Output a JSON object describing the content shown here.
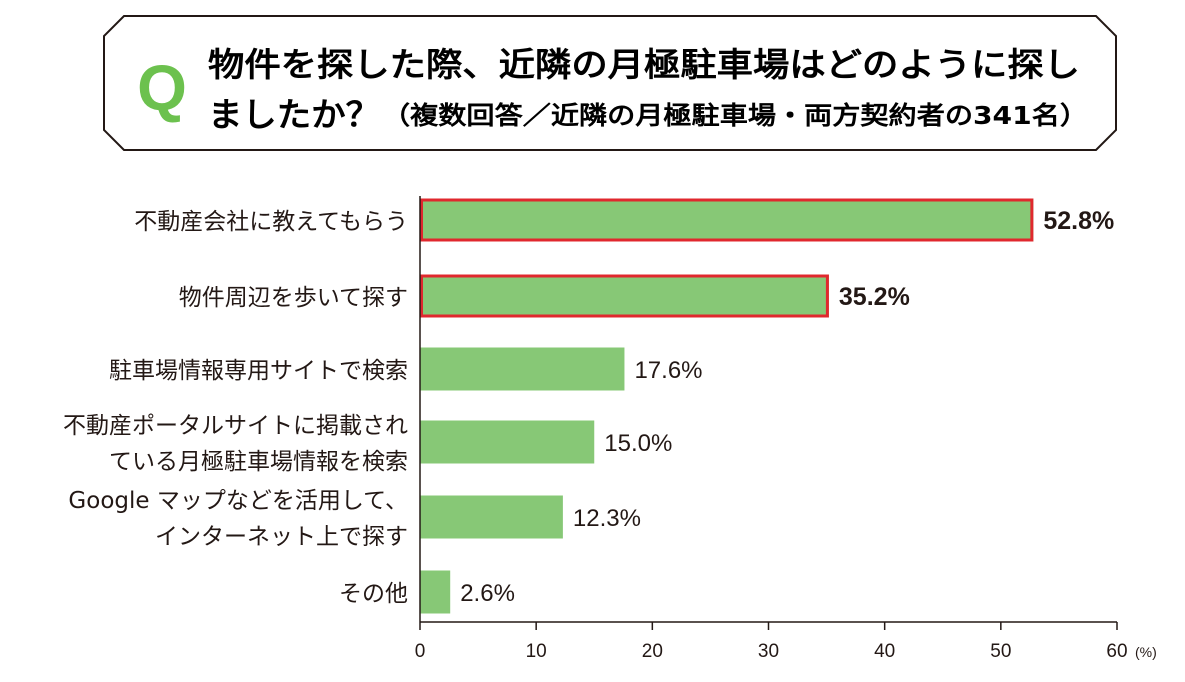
{
  "colors": {
    "bar": "#87c876",
    "highlight": "#e0282e",
    "q_mark": "#6cc14e",
    "text": "#231815",
    "frame": "#231815"
  },
  "chart_data": {
    "type": "bar",
    "orientation": "horizontal",
    "question_mark": "Q",
    "title_line1": "物件を探した際、近隣の月極駐車場はどのように探し",
    "title_line2_main": "ましたか？",
    "title_line2_note": "（複数回答／近隣の月極駐車場・両方契約者の341名）",
    "categories": [
      [
        "不動産会社に教えてもらう"
      ],
      [
        "物件周辺を歩いて探す"
      ],
      [
        "駐車場情報専用サイトで検索"
      ],
      [
        "不動産ポータルサイトに掲載され",
        "ている月極駐車場情報を検索"
      ],
      [
        "Google マップなどを活用して、",
        "インターネット上で探す"
      ],
      [
        "その他"
      ]
    ],
    "values": [
      52.8,
      35.2,
      17.6,
      15.0,
      12.3,
      2.6
    ],
    "value_labels": [
      "52.8%",
      "35.2%",
      "17.6%",
      "15.0%",
      "12.3%",
      "2.6%"
    ],
    "highlighted": [
      true,
      true,
      false,
      false,
      false,
      false
    ],
    "xlim": [
      0,
      60
    ],
    "xticks": [
      0,
      10,
      20,
      30,
      40,
      50,
      60
    ],
    "xunit": "(%)",
    "grid": false
  }
}
